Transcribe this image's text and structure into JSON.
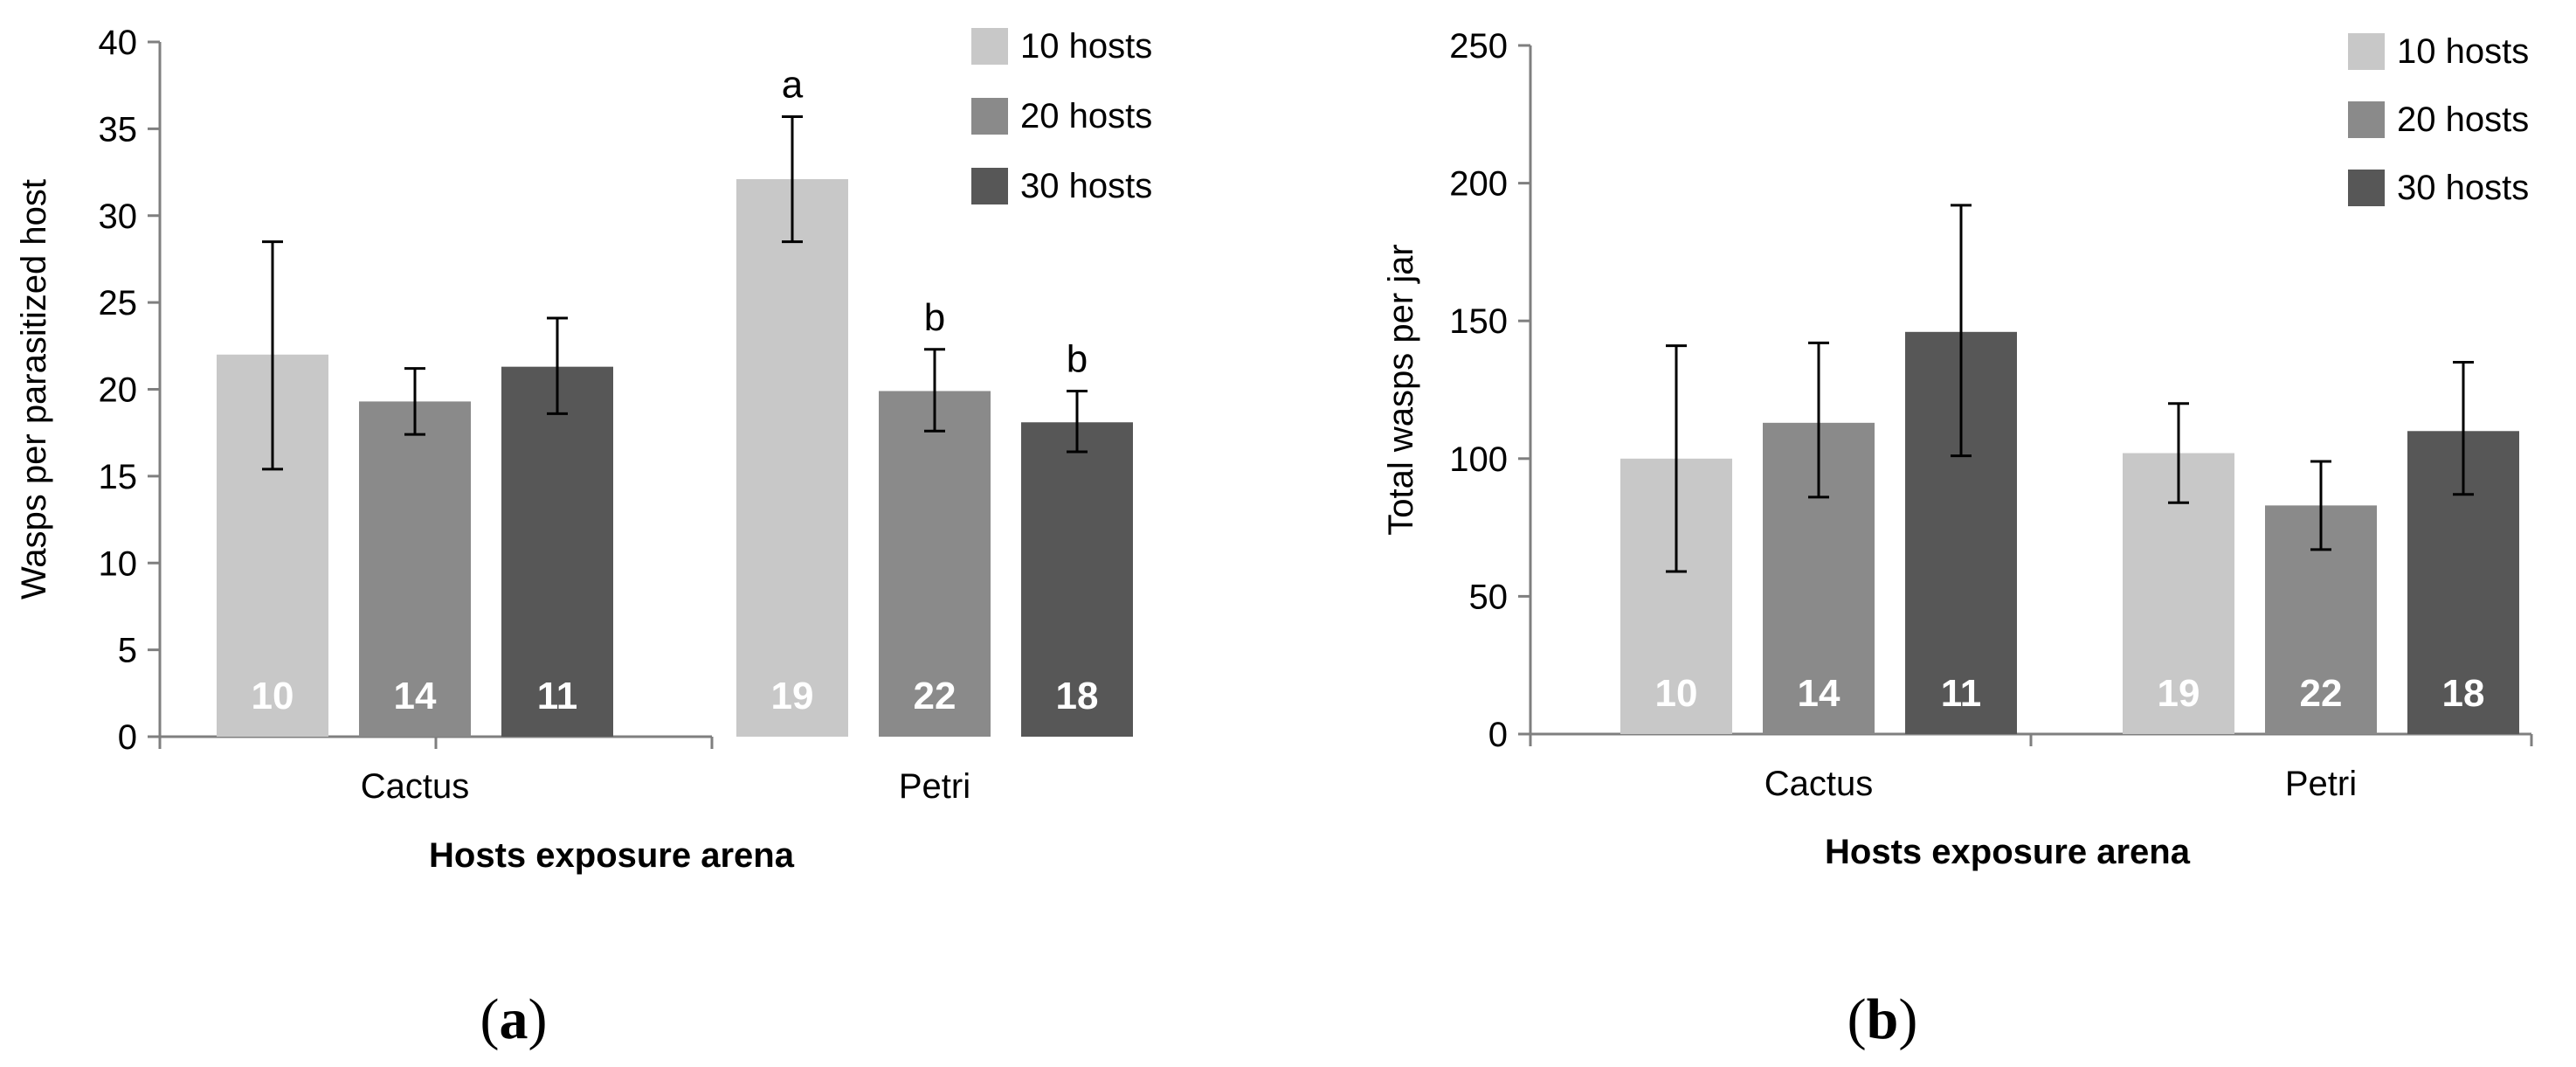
{
  "colors": {
    "series": [
      "#c8c8c8",
      "#8a8a8a",
      "#575757"
    ],
    "n_label": "#ffffff",
    "axis": "#7f7f7f",
    "error_bar": "#000000"
  },
  "chart_data": [
    {
      "type": "bar",
      "panel_label": "(a)",
      "panel_letter": "a",
      "categories": [
        "Cactus",
        "Petri"
      ],
      "xlabel": "Hosts exposure arena",
      "ylabel": "Wasps per parasitized host",
      "ylim": [
        0,
        40
      ],
      "yticks": [
        0,
        5,
        10,
        15,
        20,
        25,
        30,
        35,
        40
      ],
      "grid": false,
      "legend_position": "top-right",
      "series": [
        {
          "name": "10 hosts",
          "values": [
            22.0,
            32.1
          ],
          "err_low": [
            15.4,
            28.5
          ],
          "err_high": [
            28.5,
            35.7
          ],
          "n": [
            "10",
            "19"
          ],
          "sig": [
            "",
            "a"
          ]
        },
        {
          "name": "20 hosts",
          "values": [
            19.3,
            19.9
          ],
          "err_low": [
            17.4,
            17.6
          ],
          "err_high": [
            21.2,
            22.3
          ],
          "n": [
            "14",
            "22"
          ],
          "sig": [
            "",
            "b"
          ]
        },
        {
          "name": "30 hosts",
          "values": [
            21.3,
            18.1
          ],
          "err_low": [
            18.6,
            16.4
          ],
          "err_high": [
            24.1,
            19.9
          ],
          "n": [
            "11",
            "18"
          ],
          "sig": [
            "",
            "b"
          ]
        }
      ]
    },
    {
      "type": "bar",
      "panel_label": "(b)",
      "panel_letter": "b",
      "categories": [
        "Cactus",
        "Petri"
      ],
      "xlabel": "Hosts exposure arena",
      "ylabel": "Total wasps per jar",
      "ylim": [
        0,
        250
      ],
      "yticks": [
        0,
        50,
        100,
        150,
        200,
        250
      ],
      "grid": false,
      "legend_position": "top-right",
      "series": [
        {
          "name": "10 hosts",
          "values": [
            100,
            102
          ],
          "err_low": [
            59,
            84
          ],
          "err_high": [
            141,
            120
          ],
          "n": [
            "10",
            "19"
          ],
          "sig": [
            "",
            ""
          ]
        },
        {
          "name": "20 hosts",
          "values": [
            113,
            83
          ],
          "err_low": [
            86,
            67
          ],
          "err_high": [
            142,
            99
          ],
          "n": [
            "14",
            "22"
          ],
          "sig": [
            "",
            ""
          ]
        },
        {
          "name": "30 hosts",
          "values": [
            146,
            110
          ],
          "err_low": [
            101,
            87
          ],
          "err_high": [
            192,
            135
          ],
          "n": [
            "11",
            "18"
          ],
          "sig": [
            "",
            ""
          ]
        }
      ]
    }
  ]
}
